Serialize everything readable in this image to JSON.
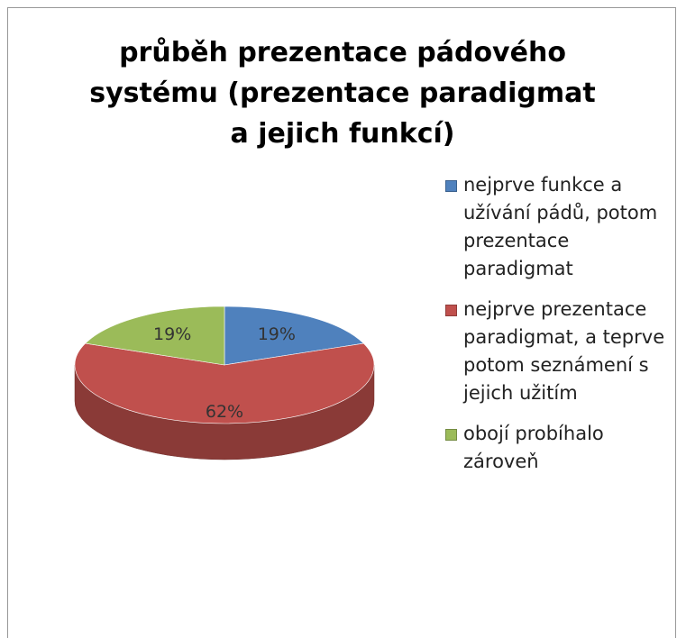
{
  "chart_data": {
    "type": "pie",
    "title": "průběh prezentace pádového systému (prezentace paradigmat a jejich funkcí)",
    "categories": [
      "nejprve funkce a užívání pádů, potom prezentace paradigmat",
      "nejprve prezentace paradigmat, a teprve potom seznámení s jejich užitím",
      "obojí probíhalo zároveň"
    ],
    "values": [
      19,
      62,
      19
    ],
    "value_labels": [
      "19%",
      "62%",
      "19%"
    ],
    "colors": [
      "#4f81bd",
      "#c0504d",
      "#9bbb59"
    ],
    "legend": "right"
  }
}
